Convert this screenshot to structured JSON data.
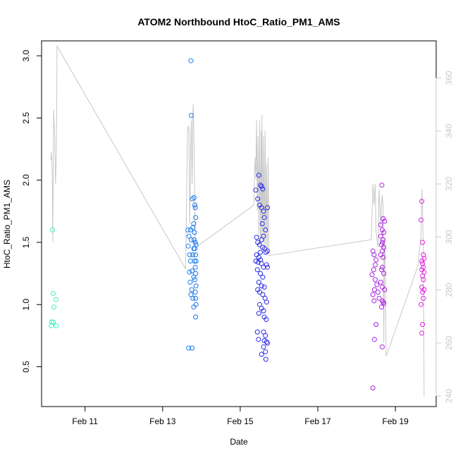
{
  "chart_data": {
    "type": "scatter",
    "title": "ATOM2 Northbound HtoC_Ratio_PM1_AMS",
    "xlabel": "Date",
    "ylabel": "HtoC_Ratio_PM1_AMS",
    "x_tick_labels": [
      "Feb 11",
      "Feb 13",
      "Feb 15",
      "Feb 17",
      "Feb 19"
    ],
    "x_tick_days": [
      11,
      13,
      15,
      17,
      19
    ],
    "xlim_days": [
      9.88,
      20.05
    ],
    "y_ticks": [
      0.5,
      1.0,
      1.5,
      2.0,
      2.5,
      3.0
    ],
    "y_tick_labels": [
      "0.5",
      "1.0",
      "1.5",
      "2.0",
      "2.5",
      "3.0"
    ],
    "ylim": [
      0.18,
      3.12
    ],
    "y2_ticks": [
      240,
      260,
      280,
      300,
      320,
      340,
      360
    ],
    "y2_tick_labels": [
      "240",
      "260",
      "280",
      "300",
      "320",
      "340",
      "360"
    ],
    "y2lim": [
      236,
      374
    ],
    "grid": false,
    "colors": {
      "point_gradient": [
        "#40f0c0",
        "#20c8f0",
        "#1030e8",
        "#7020e0",
        "#e020e0"
      ],
      "line": "#c8c8c8",
      "axis": "#000000",
      "right_axis": "#c8c8c8"
    },
    "points": [
      [
        10.16,
        1.6
      ],
      [
        10.18,
        1.09
      ],
      [
        10.2,
        0.98
      ],
      [
        10.25,
        1.04
      ],
      [
        10.14,
        0.86
      ],
      [
        10.18,
        0.86
      ],
      [
        10.13,
        0.83
      ],
      [
        10.26,
        0.83
      ],
      [
        13.73,
        2.96
      ],
      [
        13.74,
        2.52
      ],
      [
        13.67,
        0.65
      ],
      [
        13.76,
        0.65
      ],
      [
        13.65,
        1.6
      ],
      [
        13.72,
        1.6
      ],
      [
        13.68,
        1.55
      ],
      [
        13.74,
        1.52
      ],
      [
        13.66,
        1.47
      ],
      [
        13.7,
        1.4
      ],
      [
        13.78,
        1.4
      ],
      [
        13.72,
        1.35
      ],
      [
        13.69,
        1.26
      ],
      [
        13.76,
        1.27
      ],
      [
        13.8,
        1.22
      ],
      [
        13.71,
        1.18
      ],
      [
        13.75,
        1.12
      ],
      [
        13.73,
        1.08
      ],
      [
        13.78,
        1.05
      ],
      [
        13.8,
        0.98
      ],
      [
        13.77,
        1.85
      ],
      [
        13.81,
        1.86
      ],
      [
        13.83,
        1.8
      ],
      [
        13.84,
        1.78
      ],
      [
        13.85,
        1.7
      ],
      [
        13.8,
        1.65
      ],
      [
        13.78,
        1.62
      ],
      [
        13.82,
        1.58
      ],
      [
        13.81,
        1.52
      ],
      [
        13.84,
        1.5
      ],
      [
        13.86,
        1.48
      ],
      [
        13.83,
        1.45
      ],
      [
        13.85,
        1.4
      ],
      [
        13.86,
        1.35
      ],
      [
        13.84,
        1.3
      ],
      [
        13.85,
        1.25
      ],
      [
        13.83,
        1.2
      ],
      [
        13.86,
        1.15
      ],
      [
        13.84,
        1.1
      ],
      [
        13.85,
        1.05
      ],
      [
        13.86,
        1.0
      ],
      [
        13.85,
        0.9
      ],
      [
        13.82,
        1.35
      ],
      [
        13.8,
        1.45
      ],
      [
        15.4,
        1.92
      ],
      [
        15.48,
        2.04
      ],
      [
        15.52,
        1.96
      ],
      [
        15.55,
        1.95
      ],
      [
        15.58,
        1.93
      ],
      [
        15.45,
        1.85
      ],
      [
        15.5,
        1.8
      ],
      [
        15.55,
        1.78
      ],
      [
        15.6,
        1.75
      ],
      [
        15.7,
        1.78
      ],
      [
        15.62,
        1.7
      ],
      [
        15.57,
        1.65
      ],
      [
        15.65,
        1.6
      ],
      [
        15.6,
        1.55
      ],
      [
        15.55,
        1.52
      ],
      [
        15.45,
        1.5
      ],
      [
        15.5,
        1.48
      ],
      [
        15.58,
        1.46
      ],
      [
        15.63,
        1.45
      ],
      [
        15.42,
        1.4
      ],
      [
        15.48,
        1.38
      ],
      [
        15.52,
        1.36
      ],
      [
        15.4,
        1.35
      ],
      [
        15.46,
        1.34
      ],
      [
        15.55,
        1.33
      ],
      [
        15.6,
        1.3
      ],
      [
        15.68,
        1.32
      ],
      [
        15.7,
        1.3
      ],
      [
        15.44,
        1.28
      ],
      [
        15.52,
        1.25
      ],
      [
        15.58,
        1.22
      ],
      [
        15.48,
        1.18
      ],
      [
        15.55,
        1.15
      ],
      [
        15.62,
        1.14
      ],
      [
        15.45,
        1.12
      ],
      [
        15.5,
        1.1
      ],
      [
        15.58,
        1.08
      ],
      [
        15.64,
        1.05
      ],
      [
        15.68,
        1.02
      ],
      [
        15.5,
        1.0
      ],
      [
        15.55,
        0.97
      ],
      [
        15.6,
        0.95
      ],
      [
        15.48,
        0.93
      ],
      [
        15.62,
        0.9
      ],
      [
        15.67,
        0.88
      ],
      [
        15.44,
        0.78
      ],
      [
        15.6,
        0.78
      ],
      [
        15.65,
        0.75
      ],
      [
        15.47,
        0.72
      ],
      [
        15.62,
        0.71
      ],
      [
        15.68,
        0.7
      ],
      [
        15.7,
        0.69
      ],
      [
        15.6,
        0.66
      ],
      [
        15.65,
        0.62
      ],
      [
        15.55,
        0.6
      ],
      [
        15.66,
        0.56
      ],
      [
        15.42,
        1.54
      ],
      [
        15.66,
        1.42
      ],
      [
        15.7,
        1.43
      ],
      [
        15.52,
        1.42
      ],
      [
        18.42,
        1.43
      ],
      [
        18.45,
        1.4
      ],
      [
        18.5,
        1.36
      ],
      [
        18.48,
        1.32
      ],
      [
        18.44,
        1.28
      ],
      [
        18.4,
        1.24
      ],
      [
        18.48,
        1.2
      ],
      [
        18.52,
        1.16
      ],
      [
        18.46,
        1.12
      ],
      [
        18.55,
        1.1
      ],
      [
        18.42,
        1.08
      ],
      [
        18.58,
        1.05
      ],
      [
        18.45,
        1.03
      ],
      [
        18.5,
        0.84
      ],
      [
        18.46,
        0.72
      ],
      [
        18.42,
        0.33
      ],
      [
        18.65,
        1.96
      ],
      [
        18.68,
        1.69
      ],
      [
        18.72,
        1.67
      ],
      [
        18.62,
        1.64
      ],
      [
        18.66,
        1.6
      ],
      [
        18.7,
        1.58
      ],
      [
        18.62,
        1.55
      ],
      [
        18.68,
        1.52
      ],
      [
        18.66,
        1.5
      ],
      [
        18.64,
        1.48
      ],
      [
        18.7,
        1.46
      ],
      [
        18.66,
        1.43
      ],
      [
        18.62,
        1.4
      ],
      [
        18.68,
        1.38
      ],
      [
        18.66,
        1.3
      ],
      [
        18.64,
        1.28
      ],
      [
        18.7,
        1.25
      ],
      [
        18.62,
        1.18
      ],
      [
        18.66,
        1.14
      ],
      [
        18.72,
        1.12
      ],
      [
        18.66,
        1.03
      ],
      [
        18.68,
        1.02
      ],
      [
        18.7,
        1.01
      ],
      [
        18.64,
        0.98
      ],
      [
        18.66,
        0.66
      ],
      [
        19.68,
        1.83
      ],
      [
        19.66,
        1.68
      ],
      [
        19.7,
        1.5
      ],
      [
        19.72,
        1.4
      ],
      [
        19.74,
        1.37
      ],
      [
        19.68,
        1.35
      ],
      [
        19.7,
        1.33
      ],
      [
        19.72,
        1.3
      ],
      [
        19.68,
        1.28
      ],
      [
        19.74,
        1.26
      ],
      [
        19.7,
        1.23
      ],
      [
        19.72,
        1.2
      ],
      [
        19.68,
        1.14
      ],
      [
        19.74,
        1.12
      ],
      [
        19.7,
        1.1
      ],
      [
        19.72,
        1.05
      ],
      [
        19.66,
        1.0
      ],
      [
        19.7,
        0.84
      ],
      [
        19.68,
        0.77
      ]
    ],
    "line_series": [
      [
        10.12,
        329
      ],
      [
        10.13,
        332
      ],
      [
        10.14,
        330
      ],
      [
        10.15,
        326
      ],
      [
        10.16,
        318
      ],
      [
        10.17,
        298
      ],
      [
        10.18,
        322
      ],
      [
        10.19,
        348
      ],
      [
        10.2,
        344
      ],
      [
        10.22,
        338
      ],
      [
        10.24,
        320
      ],
      [
        10.26,
        330
      ],
      [
        10.28,
        372
      ],
      [
        13.59,
        288
      ],
      [
        13.62,
        316
      ],
      [
        13.64,
        338
      ],
      [
        13.66,
        342
      ],
      [
        13.68,
        340
      ],
      [
        13.69,
        320
      ],
      [
        13.7,
        305
      ],
      [
        13.71,
        316
      ],
      [
        13.72,
        330
      ],
      [
        13.73,
        340
      ],
      [
        13.74,
        344
      ],
      [
        13.75,
        330
      ],
      [
        13.76,
        320
      ],
      [
        13.77,
        332
      ],
      [
        13.78,
        346
      ],
      [
        13.79,
        350
      ],
      [
        13.8,
        342
      ],
      [
        13.81,
        335
      ],
      [
        13.82,
        320
      ],
      [
        13.83,
        310
      ],
      [
        13.84,
        298
      ],
      [
        13.85,
        296
      ],
      [
        15.35,
        312
      ],
      [
        15.38,
        330
      ],
      [
        15.4,
        322
      ],
      [
        15.42,
        344
      ],
      [
        15.44,
        310
      ],
      [
        15.46,
        338
      ],
      [
        15.48,
        300
      ],
      [
        15.5,
        344
      ],
      [
        15.52,
        296
      ],
      [
        15.54,
        340
      ],
      [
        15.55,
        300
      ],
      [
        15.56,
        346
      ],
      [
        15.58,
        298
      ],
      [
        15.6,
        338
      ],
      [
        15.62,
        295
      ],
      [
        15.64,
        340
      ],
      [
        15.66,
        296
      ],
      [
        15.68,
        328
      ],
      [
        15.7,
        294
      ],
      [
        15.72,
        330
      ],
      [
        15.74,
        293
      ],
      [
        18.38,
        299
      ],
      [
        18.42,
        320
      ],
      [
        18.45,
        312
      ],
      [
        18.48,
        320
      ],
      [
        18.5,
        302
      ],
      [
        18.55,
        296
      ],
      [
        18.58,
        318
      ],
      [
        18.62,
        304
      ],
      [
        18.64,
        312
      ],
      [
        18.66,
        316
      ],
      [
        18.68,
        312
      ],
      [
        18.7,
        260
      ],
      [
        18.72,
        300
      ],
      [
        18.74,
        290
      ],
      [
        18.76,
        255
      ],
      [
        19.58,
        289
      ],
      [
        19.62,
        295
      ],
      [
        19.66,
        300
      ],
      [
        19.68,
        318
      ],
      [
        19.7,
        310
      ],
      [
        19.72,
        295
      ],
      [
        19.74,
        240
      ]
    ]
  }
}
